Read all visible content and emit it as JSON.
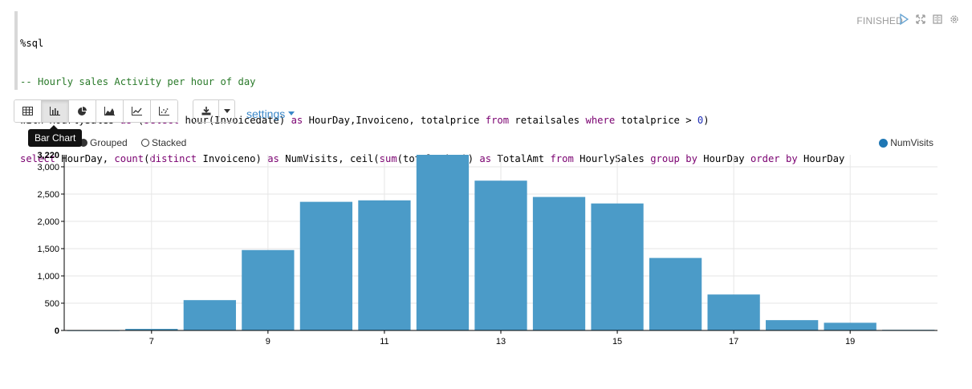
{
  "code": {
    "line1": "%sql",
    "line2": "-- Hourly sales Activity per hour of day",
    "line3": [
      {
        "t": "with HourlySales ",
        "c": "str"
      },
      {
        "t": "as",
        "c": "kw"
      },
      {
        "t": " (",
        "c": "str"
      },
      {
        "t": "select",
        "c": "kw"
      },
      {
        "t": " hour(Invoicedate) ",
        "c": "str"
      },
      {
        "t": "as",
        "c": "kw"
      },
      {
        "t": " HourDay,Invoiceno, totalprice ",
        "c": "str"
      },
      {
        "t": "from",
        "c": "kw"
      },
      {
        "t": " retailsales ",
        "c": "str"
      },
      {
        "t": "where",
        "c": "kw"
      },
      {
        "t": " totalprice > ",
        "c": "str"
      },
      {
        "t": "0",
        "c": "num"
      },
      {
        "t": ")",
        "c": "str"
      }
    ],
    "line4": [
      {
        "t": "select",
        "c": "kw"
      },
      {
        "t": " HourDay, ",
        "c": "str"
      },
      {
        "t": "count",
        "c": "kw"
      },
      {
        "t": "(",
        "c": "str"
      },
      {
        "t": "distinct",
        "c": "kw"
      },
      {
        "t": " Invoiceno) ",
        "c": "str"
      },
      {
        "t": "as",
        "c": "kw"
      },
      {
        "t": " NumVisits, ceil(",
        "c": "str"
      },
      {
        "t": "sum",
        "c": "kw"
      },
      {
        "t": "(totalprice)) ",
        "c": "str"
      },
      {
        "t": "as",
        "c": "kw"
      },
      {
        "t": " TotalAmt ",
        "c": "str"
      },
      {
        "t": "from",
        "c": "kw"
      },
      {
        "t": " HourlySales ",
        "c": "str"
      },
      {
        "t": "group by",
        "c": "kw"
      },
      {
        "t": " HourDay ",
        "c": "str"
      },
      {
        "t": "order by",
        "c": "kw"
      },
      {
        "t": " HourDay",
        "c": "str"
      }
    ]
  },
  "status": {
    "text": "FINISHED",
    "icons": [
      "run-icon",
      "expand-icon",
      "book-icon",
      "gear-icon"
    ]
  },
  "toolbar": {
    "view_buttons": [
      {
        "name": "table",
        "icon": "table-icon"
      },
      {
        "name": "bar-chart",
        "icon": "bar-chart-icon",
        "active": true
      },
      {
        "name": "pie-chart",
        "icon": "pie-chart-icon"
      },
      {
        "name": "area-chart",
        "icon": "area-chart-icon"
      },
      {
        "name": "line-chart",
        "icon": "line-chart-icon"
      },
      {
        "name": "scatter-chart",
        "icon": "scatter-chart-icon"
      }
    ],
    "download_icon": "download-icon",
    "caret_icon": "caret-down-icon",
    "settings_label": "settings"
  },
  "tooltip": {
    "text": "Bar Chart"
  },
  "mode": {
    "grouped_label": "Grouped",
    "stacked_label": "Stacked",
    "selected": "Grouped"
  },
  "colors": {
    "bar": "#4b9bc8",
    "legend": "#1f77b4",
    "accent": "#3a87c8"
  },
  "chart_data": {
    "type": "bar",
    "categories": [
      "6",
      "7",
      "8",
      "9",
      "10",
      "11",
      "12",
      "13",
      "14",
      "15",
      "16",
      "17",
      "18",
      "19",
      "20"
    ],
    "x_tick_labels": [
      "7",
      "9",
      "11",
      "13",
      "15",
      "17",
      "19"
    ],
    "series": [
      {
        "name": "NumVisits",
        "values": [
          1,
          29,
          556,
          1474,
          2358,
          2385,
          3220,
          2746,
          2447,
          2328,
          1329,
          659,
          189,
          141,
          12
        ]
      }
    ],
    "y_ticks": [
      "0",
      "500",
      "1,000",
      "1,500",
      "2,000",
      "2,500",
      "3,000"
    ],
    "y_max_label": "3,220",
    "ylim": [
      0,
      3220
    ],
    "grid": true,
    "legend": "top-right"
  }
}
